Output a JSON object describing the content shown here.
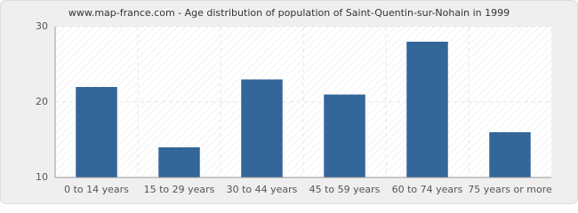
{
  "chart_data": {
    "type": "bar",
    "title": "www.map-france.com - Age distribution of population of Saint-Quentin-sur-Nohain in 1999",
    "categories": [
      "0 to 14 years",
      "15 to 29 years",
      "30 to 44 years",
      "45 to 59 years",
      "60 to 74 years",
      "75 years or more"
    ],
    "values": [
      22,
      14,
      23,
      21,
      28,
      16
    ],
    "color": "#336699",
    "ylim": [
      10,
      30
    ],
    "yticks": [
      10,
      20,
      30
    ],
    "grid": true
  }
}
